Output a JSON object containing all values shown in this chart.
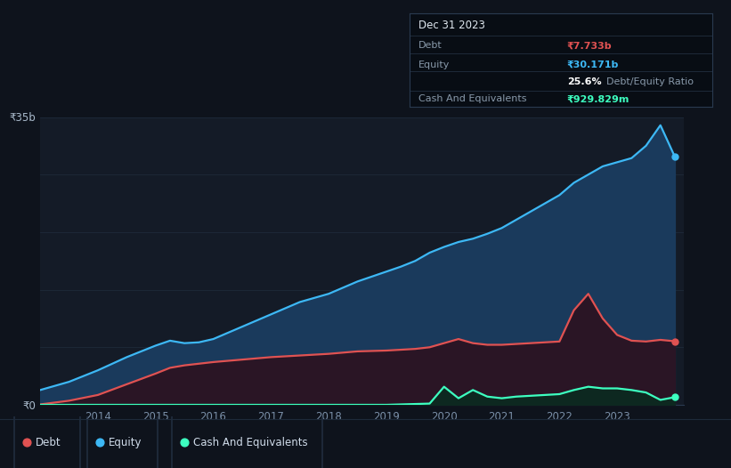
{
  "background_color": "#0e131c",
  "plot_bg_color": "#141b27",
  "grid_color": "#1e2a3a",
  "title_box": {
    "date": "Dec 31 2023",
    "debt_label": "Debt",
    "debt_value": "₹7.733b",
    "debt_color": "#e05252",
    "equity_label": "Equity",
    "equity_value": "₹30.171b",
    "equity_color": "#3db8f5",
    "cash_label": "Cash And Equivalents",
    "cash_value": "₹929.829m",
    "cash_color": "#3dffc0"
  },
  "y_label_35b": "₹35b",
  "y_label_0": "₹0",
  "x_ticks": [
    "2014",
    "2015",
    "2016",
    "2017",
    "2018",
    "2019",
    "2020",
    "2021",
    "2022",
    "2023"
  ],
  "legend": [
    {
      "label": "Debt",
      "color": "#e05252"
    },
    {
      "label": "Equity",
      "color": "#3db8f5"
    },
    {
      "label": "Cash And Equivalents",
      "color": "#3dffc0"
    }
  ],
  "years": [
    2013.0,
    2013.5,
    2014.0,
    2014.5,
    2015.0,
    2015.25,
    2015.5,
    2015.75,
    2016.0,
    2016.5,
    2017.0,
    2017.5,
    2018.0,
    2018.5,
    2019.0,
    2019.25,
    2019.5,
    2019.75,
    2020.0,
    2020.25,
    2020.5,
    2020.75,
    2021.0,
    2021.25,
    2021.5,
    2021.75,
    2022.0,
    2022.25,
    2022.5,
    2022.75,
    2023.0,
    2023.25,
    2023.5,
    2023.75,
    2024.0
  ],
  "equity": [
    1.8,
    2.8,
    4.2,
    5.8,
    7.2,
    7.8,
    7.5,
    7.6,
    8.0,
    9.5,
    11.0,
    12.5,
    13.5,
    15.0,
    16.2,
    16.8,
    17.5,
    18.5,
    19.2,
    19.8,
    20.2,
    20.8,
    21.5,
    22.5,
    23.5,
    24.5,
    25.5,
    27.0,
    28.0,
    29.0,
    29.5,
    30.0,
    31.5,
    34.0,
    30.171
  ],
  "debt": [
    0.05,
    0.5,
    1.2,
    2.5,
    3.8,
    4.5,
    4.8,
    5.0,
    5.2,
    5.5,
    5.8,
    6.0,
    6.2,
    6.5,
    6.6,
    6.7,
    6.8,
    7.0,
    7.5,
    8.0,
    7.5,
    7.3,
    7.3,
    7.4,
    7.5,
    7.6,
    7.7,
    11.5,
    13.5,
    10.5,
    8.5,
    7.8,
    7.7,
    7.9,
    7.733
  ],
  "cash": [
    0.0,
    0.0,
    0.0,
    0.0,
    0.0,
    0.0,
    0.0,
    0.0,
    0.0,
    0.0,
    0.0,
    0.0,
    0.0,
    0.0,
    0.0,
    0.05,
    0.1,
    0.15,
    2.2,
    0.8,
    1.8,
    1.0,
    0.8,
    1.0,
    1.1,
    1.2,
    1.3,
    1.8,
    2.2,
    2.0,
    2.0,
    1.8,
    1.5,
    0.6,
    0.93
  ],
  "ylim": [
    0,
    35
  ],
  "xlim_start": 2013.0,
  "xlim_end": 2024.15,
  "grid_y_positions": [
    0,
    7,
    14,
    21,
    28,
    35
  ]
}
